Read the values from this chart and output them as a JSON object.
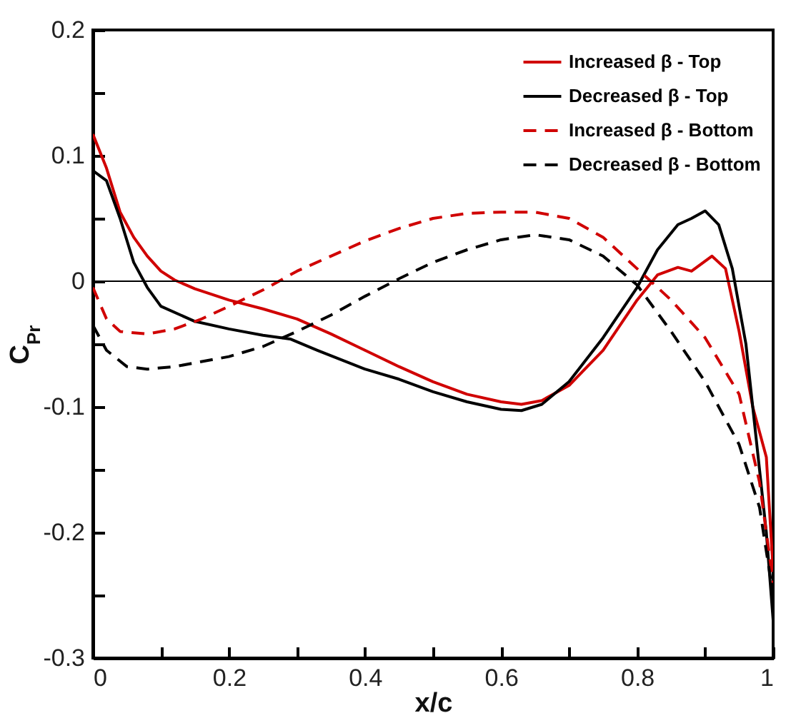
{
  "chart_data": {
    "type": "line",
    "xlabel": "x/c",
    "ylabel": "C$_{Pr}$",
    "xlim": [
      0,
      1
    ],
    "ylim": [
      -0.3,
      0.2
    ],
    "xticks": [
      0,
      {
        "value": 0.1,
        "label": null
      },
      0.2,
      {
        "value": 0.3,
        "label": null
      },
      0.4,
      {
        "value": 0.5,
        "label": null
      },
      0.6,
      {
        "value": 0.7,
        "label": null
      },
      0.8,
      {
        "value": 0.9,
        "label": null
      },
      1
    ],
    "yticks": [
      -0.3,
      {
        "value": -0.25,
        "label": null
      },
      -0.2,
      {
        "value": -0.15,
        "label": null
      },
      -0.1,
      {
        "value": -0.05,
        "label": null
      },
      0,
      {
        "value": 0.05,
        "label": null
      },
      0.1,
      {
        "value": 0.15,
        "label": null
      },
      0.2
    ],
    "grid": false,
    "legend": "top right",
    "marker": "none",
    "ref_lines": [
      {
        "axis": "y",
        "value": 0,
        "color": "#000000",
        "line_style": "solid"
      }
    ],
    "series": [
      {
        "name": "Increased β - Top",
        "color": "#d00000",
        "line_style": "solid",
        "x": [
          0,
          0.02,
          0.04,
          0.06,
          0.08,
          0.1,
          0.12,
          0.15,
          0.2,
          0.25,
          0.3,
          0.35,
          0.4,
          0.45,
          0.5,
          0.55,
          0.6,
          0.63,
          0.66,
          0.7,
          0.75,
          0.8,
          0.83,
          0.86,
          0.88,
          0.91,
          0.93,
          0.95,
          0.97,
          0.99,
          1.0
        ],
        "values": [
          0.117,
          0.09,
          0.055,
          0.035,
          0.02,
          0.008,
          0.001,
          -0.006,
          -0.015,
          -0.022,
          -0.03,
          -0.042,
          -0.055,
          -0.068,
          -0.08,
          -0.09,
          -0.096,
          -0.098,
          -0.095,
          -0.083,
          -0.055,
          -0.015,
          0.005,
          0.011,
          0.008,
          0.02,
          0.01,
          -0.04,
          -0.1,
          -0.14,
          -0.23
        ]
      },
      {
        "name": "Decreased β - Top",
        "color": "#000000",
        "line_style": "solid",
        "x": [
          0,
          0.02,
          0.04,
          0.06,
          0.08,
          0.1,
          0.15,
          0.2,
          0.25,
          0.29,
          0.33,
          0.4,
          0.45,
          0.5,
          0.55,
          0.6,
          0.63,
          0.66,
          0.7,
          0.75,
          0.8,
          0.83,
          0.86,
          0.88,
          0.9,
          0.92,
          0.94,
          0.96,
          0.98,
          0.99,
          1.0
        ],
        "values": [
          0.088,
          0.08,
          0.05,
          0.015,
          -0.005,
          -0.02,
          -0.032,
          -0.038,
          -0.043,
          -0.046,
          -0.055,
          -0.07,
          -0.078,
          -0.088,
          -0.096,
          -0.102,
          -0.103,
          -0.098,
          -0.08,
          -0.045,
          -0.005,
          0.025,
          0.045,
          0.05,
          0.056,
          0.045,
          0.01,
          -0.05,
          -0.15,
          -0.2,
          -0.27
        ]
      },
      {
        "name": "Increased β - Bottom",
        "color": "#d00000",
        "line_style": "dashed",
        "x": [
          0,
          0.02,
          0.04,
          0.08,
          0.12,
          0.16,
          0.2,
          0.25,
          0.3,
          0.35,
          0.4,
          0.45,
          0.5,
          0.55,
          0.6,
          0.65,
          0.7,
          0.75,
          0.8,
          0.85,
          0.9,
          0.95,
          0.98,
          1.0
        ],
        "values": [
          -0.005,
          -0.03,
          -0.04,
          -0.042,
          -0.038,
          -0.03,
          -0.02,
          -0.007,
          0.008,
          0.02,
          0.032,
          0.042,
          0.05,
          0.054,
          0.055,
          0.055,
          0.05,
          0.035,
          0.01,
          -0.015,
          -0.045,
          -0.09,
          -0.16,
          -0.24
        ]
      },
      {
        "name": "Decreased β - Bottom",
        "color": "#000000",
        "line_style": "dashed",
        "x": [
          0,
          0.02,
          0.05,
          0.08,
          0.12,
          0.2,
          0.25,
          0.3,
          0.35,
          0.4,
          0.45,
          0.5,
          0.55,
          0.6,
          0.65,
          0.7,
          0.75,
          0.8,
          0.85,
          0.9,
          0.95,
          0.98,
          1.0
        ],
        "values": [
          -0.035,
          -0.055,
          -0.068,
          -0.07,
          -0.068,
          -0.06,
          -0.052,
          -0.04,
          -0.027,
          -0.012,
          0.002,
          0.015,
          0.025,
          0.033,
          0.037,
          0.033,
          0.02,
          -0.003,
          -0.04,
          -0.08,
          -0.13,
          -0.18,
          -0.25
        ]
      }
    ]
  }
}
